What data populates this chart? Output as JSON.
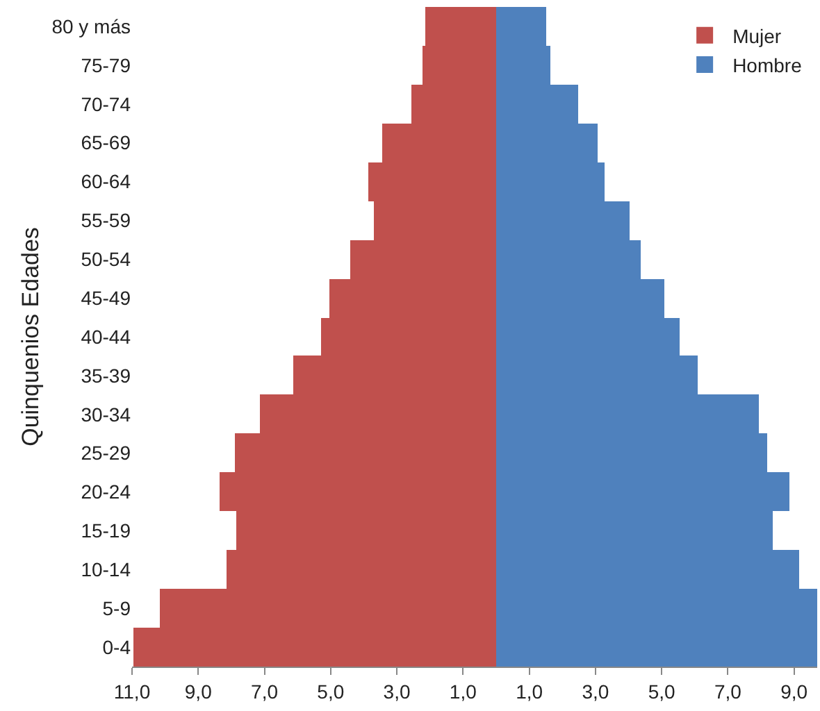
{
  "chart_data": {
    "type": "bar",
    "orientation": "horizontal",
    "ylabel": "Quinquenios Edades",
    "categories": [
      "80 y más",
      "75-79",
      "70-74",
      "65-69",
      "60-64",
      "55-59",
      "50-54",
      "45-49",
      "40-44",
      "35-39",
      "30-34",
      "25-29",
      "20-24",
      "15-19",
      "10-14",
      "5-9",
      "0-4"
    ],
    "series": [
      {
        "name": "Mujer",
        "color": "#c0504d",
        "values": [
          -2.14,
          -2.22,
          -2.56,
          -3.45,
          -3.87,
          -3.7,
          -4.4,
          -5.02,
          -5.27,
          -6.12,
          -7.13,
          -7.88,
          -8.37,
          -7.84,
          -8.16,
          -10.17,
          -10.94
        ]
      },
      {
        "name": "Hombre",
        "color": "#4f81bd",
        "values": [
          1.51,
          1.62,
          2.49,
          3.07,
          3.26,
          4.04,
          4.36,
          5.09,
          5.53,
          6.09,
          7.92,
          8.2,
          8.86,
          8.37,
          9.17,
          9.7,
          9.7
        ]
      }
    ],
    "xlim": [
      -11,
      9.7
    ],
    "xticks": [
      {
        "value": -11,
        "label": "11,0"
      },
      {
        "value": -9,
        "label": "9,0"
      },
      {
        "value": -7,
        "label": "7,0"
      },
      {
        "value": -5,
        "label": "5,0"
      },
      {
        "value": -3,
        "label": "3,0"
      },
      {
        "value": -1,
        "label": "1,0"
      },
      {
        "value": 1,
        "label": "1,0"
      },
      {
        "value": 3,
        "label": "3,0"
      },
      {
        "value": 5,
        "label": "5,0"
      },
      {
        "value": 7,
        "label": "7,0"
      },
      {
        "value": 9,
        "label": "9,0"
      }
    ],
    "legend": "top right",
    "grid": false,
    "stacked": true
  }
}
